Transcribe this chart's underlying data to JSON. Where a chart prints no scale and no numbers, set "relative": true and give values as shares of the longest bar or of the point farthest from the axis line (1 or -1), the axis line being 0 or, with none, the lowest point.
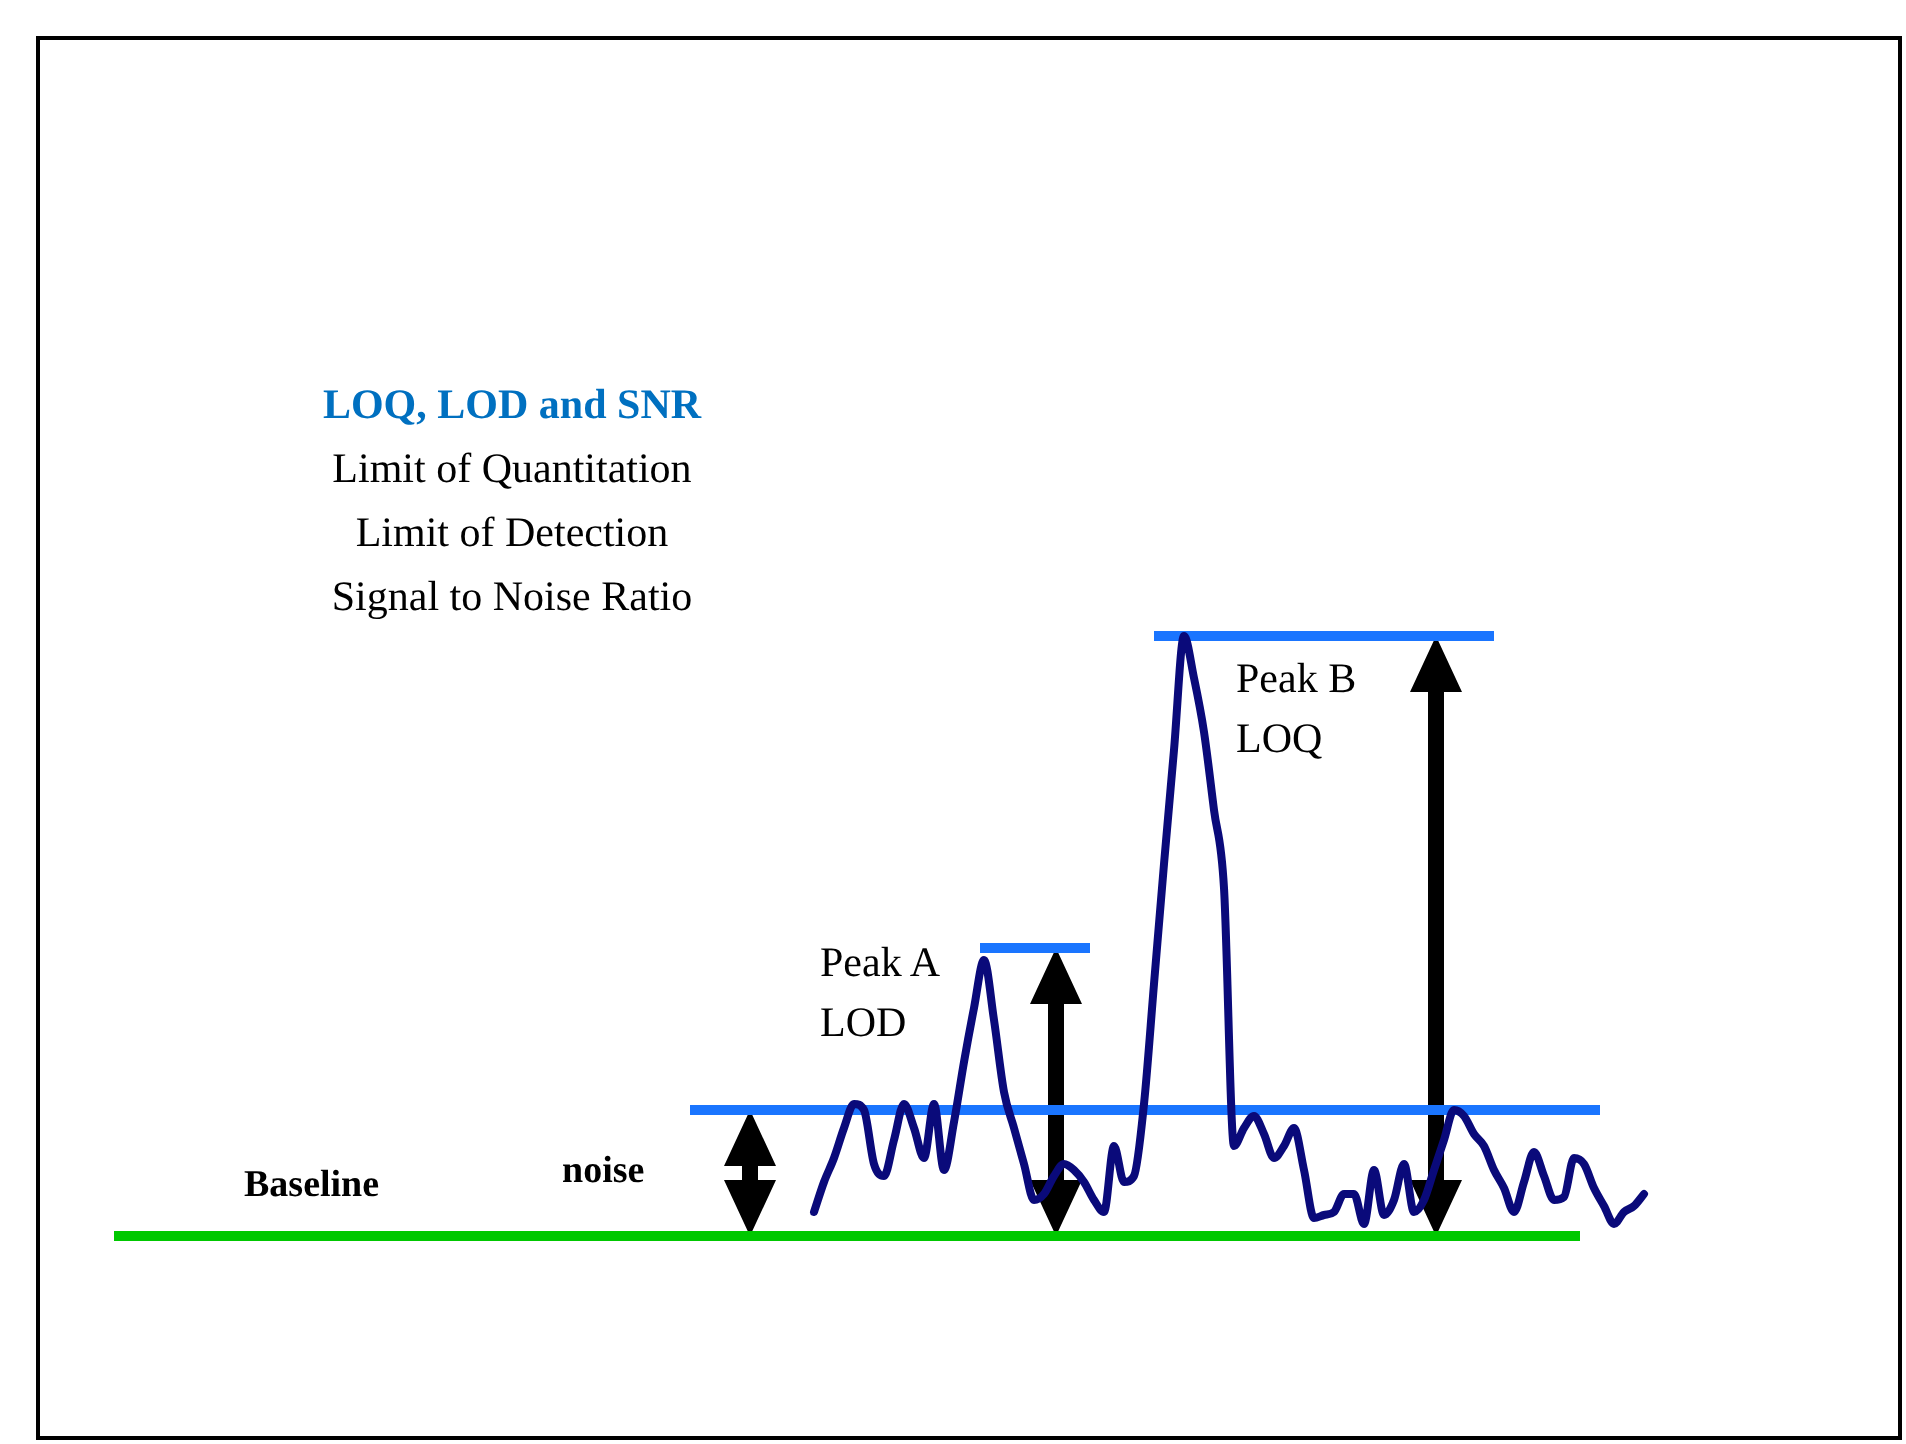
{
  "chart_data": {
    "type": "line",
    "title": "LOQ, LOD and SNR",
    "subtitle": "Limit of Quantitation\nLimit of Detection\nSignal to Noise Ratio",
    "relative": true,
    "categories": [
      null,
      null,
      null,
      null,
      null,
      null,
      null,
      null,
      null,
      null,
      null,
      null,
      null,
      null,
      null,
      null,
      null,
      null,
      null,
      null,
      null,
      null,
      null,
      null,
      null,
      null,
      null,
      null,
      null,
      null,
      null,
      null,
      null,
      null,
      null,
      null,
      null,
      null,
      null,
      null,
      null,
      null,
      null,
      null,
      null,
      null,
      null,
      null,
      null,
      null,
      null,
      null,
      null,
      null,
      null,
      null,
      null,
      null,
      null,
      null,
      null,
      null,
      null,
      null,
      null,
      null,
      null,
      null,
      null,
      null,
      null,
      null,
      null,
      null,
      null,
      null,
      null,
      null,
      null,
      null,
      null,
      null,
      null,
      null
    ],
    "series": [
      {
        "color": "#0a0a7a",
        "values": [
          0.04,
          0.09,
          0.13,
          0.18,
          0.22,
          0.21,
          0.12,
          0.1,
          0.16,
          0.22,
          0.18,
          0.13,
          0.22,
          0.11,
          0.19,
          0.29,
          0.38,
          0.46,
          0.36,
          0.24,
          0.18,
          0.12,
          0.06,
          0.07,
          0.1,
          0.12,
          0.11,
          0.09,
          0.06,
          0.04,
          0.15,
          0.09,
          0.1,
          0.22,
          0.42,
          0.62,
          0.81,
          1.0,
          0.93,
          0.84,
          0.71,
          0.58,
          0.15,
          0.18,
          0.2,
          0.17,
          0.13,
          0.15,
          0.18,
          0.11,
          0.03,
          0.035,
          0.04,
          0.07,
          0.07,
          0.02,
          0.11,
          0.035,
          0.06,
          0.12,
          0.04,
          0.06,
          0.11,
          0.16,
          0.21,
          0.2,
          0.17,
          0.15,
          0.11,
          0.08,
          0.04,
          0.09,
          0.14,
          0.1,
          0.06,
          0.065,
          0.13,
          0.12,
          0.08,
          0.05,
          0.02,
          0.04,
          0.05,
          0.07
        ]
      }
    ],
    "ref_lines": [
      {
        "axis": "y",
        "value": 0,
        "label": "Baseline",
        "color": "#00c800"
      },
      {
        "axis": "y",
        "value": 0.21,
        "label": "noise",
        "color": "#1a75ff"
      },
      {
        "axis": "y",
        "value": 0.48,
        "label": "Peak A\nLOD",
        "color": "#1a75ff"
      },
      {
        "axis": "y",
        "value": 1,
        "label": "Peak B\nLOQ",
        "color": "#1a75ff"
      }
    ],
    "legend": false,
    "marker": "none",
    "line_style": "solid"
  }
}
